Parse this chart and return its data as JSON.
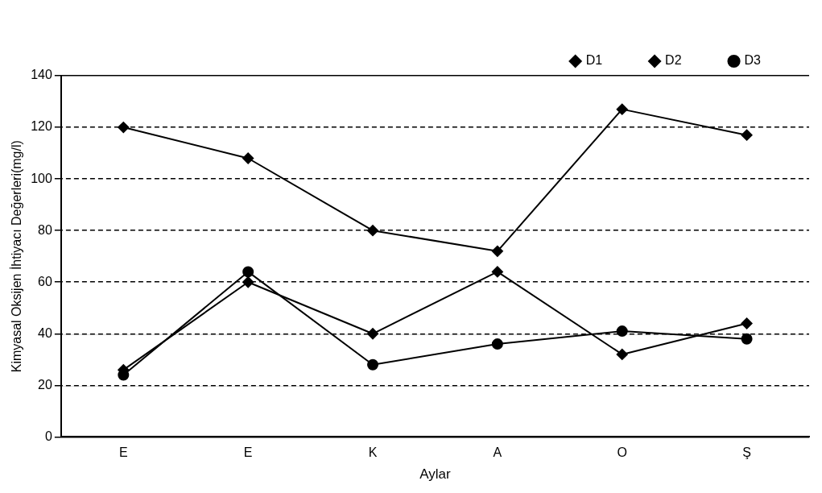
{
  "chart_data": {
    "type": "line",
    "xlabel": "Aylar",
    "ylabel": "Kimyasal Oksijen İhtiyacı Değerleri(mg/l)",
    "categories": [
      "E",
      "E",
      "K",
      "A",
      "O",
      "Ş"
    ],
    "series": [
      {
        "name": "D1",
        "color": "#000000",
        "marker": "diamond",
        "values": [
          120,
          108,
          80,
          72,
          127,
          117
        ]
      },
      {
        "name": "D2",
        "color": "#000000",
        "marker": "diamond",
        "values": [
          26,
          60,
          40,
          64,
          32,
          44
        ]
      },
      {
        "name": "D3",
        "color": "#000000",
        "marker": "circle",
        "values": [
          24,
          64,
          28,
          36,
          41,
          38
        ]
      }
    ],
    "ylim": [
      0,
      140
    ],
    "yticks": [
      0,
      20,
      40,
      60,
      80,
      100,
      120,
      140
    ],
    "grid": "y",
    "legend": "top right",
    "line_style": "solid"
  }
}
